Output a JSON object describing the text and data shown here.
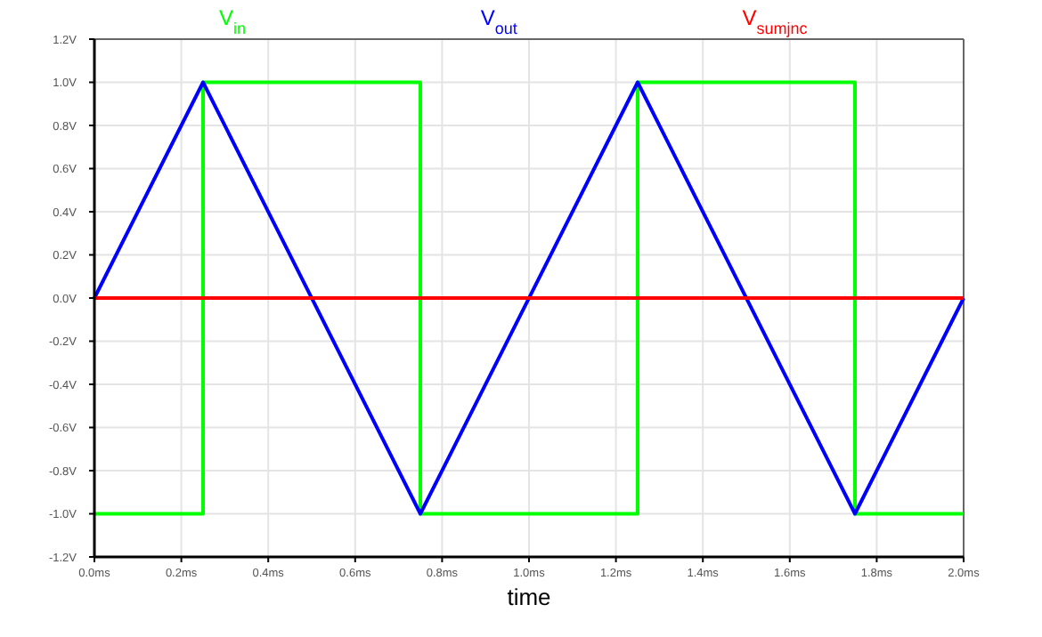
{
  "chart_data": {
    "type": "line",
    "xlabel": "time",
    "legend": "top",
    "grid": true,
    "line_style": "solid",
    "xlim": [
      0,
      2
    ],
    "ylim": [
      -1.2,
      1.2
    ],
    "xticks": [
      {
        "value": 0,
        "label": "0.0ms"
      },
      {
        "value": 0.2,
        "label": "0.2ms"
      },
      {
        "value": 0.4,
        "label": "0.4ms"
      },
      {
        "value": 0.6,
        "label": "0.6ms"
      },
      {
        "value": 0.8,
        "label": "0.8ms"
      },
      {
        "value": 1,
        "label": "1.0ms"
      },
      {
        "value": 1.2,
        "label": "1.2ms"
      },
      {
        "value": 1.4,
        "label": "1.4ms"
      },
      {
        "value": 1.6,
        "label": "1.6ms"
      },
      {
        "value": 1.8,
        "label": "1.8ms"
      },
      {
        "value": 2,
        "label": "2.0ms"
      }
    ],
    "yticks": [
      {
        "value": -1.2,
        "label": "-1.2V"
      },
      {
        "value": -1,
        "label": "-1.0V"
      },
      {
        "value": -0.8,
        "label": "-0.8V"
      },
      {
        "value": -0.6,
        "label": "-0.6V"
      },
      {
        "value": -0.4,
        "label": "-0.4V"
      },
      {
        "value": -0.2,
        "label": "-0.2V"
      },
      {
        "value": 0,
        "label": "0.0V"
      },
      {
        "value": 0.2,
        "label": "0.2V"
      },
      {
        "value": 0.4,
        "label": "0.4V"
      },
      {
        "value": 0.6,
        "label": "0.6V"
      },
      {
        "value": 0.8,
        "label": "0.8V"
      },
      {
        "value": 1,
        "label": "1.0V"
      },
      {
        "value": 1.2,
        "label": "1.2V"
      }
    ],
    "series": [
      {
        "name": "V$_{in}$",
        "color": "#00ff00",
        "x": [
          0,
          0.25,
          0.25,
          0.75,
          0.75,
          1.25,
          1.25,
          1.75,
          1.75,
          2
        ],
        "values": [
          -1,
          -1,
          1,
          1,
          -1,
          -1,
          1,
          1,
          -1,
          -1
        ]
      },
      {
        "name": "V$_{out}$",
        "color": "#0000ff",
        "x": [
          0,
          0.25,
          0.75,
          1.25,
          1.75,
          2
        ],
        "values": [
          0,
          1,
          -1,
          1,
          -1,
          0
        ]
      },
      {
        "name": "V$_{sumjnc}$",
        "color": "#ff0000",
        "x": [
          0,
          2
        ],
        "values": [
          0,
          0
        ]
      }
    ]
  }
}
